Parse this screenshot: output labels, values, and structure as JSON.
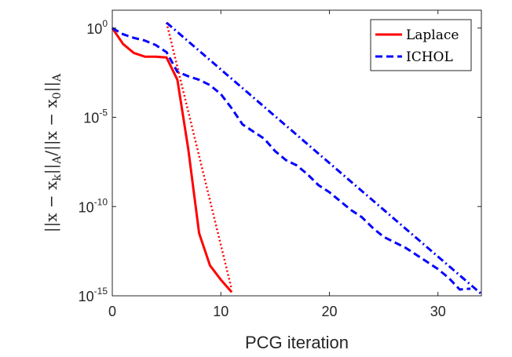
{
  "chart_data": {
    "type": "line",
    "title": "",
    "xlabel": "PCG iteration",
    "ylabel": "||x − x_k||_A / ||x − x_0||_A",
    "xlim": [
      0,
      34
    ],
    "ylim_log10": [
      -15,
      1
    ],
    "yscale": "log",
    "xticks": [
      0,
      10,
      20,
      30
    ],
    "xtick_labels": [
      "0",
      "10",
      "20",
      "30"
    ],
    "yticks": [
      {
        "base": "10",
        "exp": "0",
        "value": 0
      },
      {
        "base": "10",
        "exp": "-5",
        "value": -5
      },
      {
        "base": "10",
        "exp": "-10",
        "value": -10
      },
      {
        "base": "10",
        "exp": "-15",
        "value": -15
      }
    ],
    "legend": {
      "position": "top-right",
      "entries": [
        "Laplace",
        "ICHOL"
      ]
    },
    "ylabel_parts": {
      "a": "||x − x",
      "a_sub": "k",
      "b": "||",
      "b_sub": "A",
      "c": "/||x − x",
      "c_sub": "0",
      "d": "||",
      "d_sub": "A"
    },
    "series": [
      {
        "name": "Laplace",
        "color": "#ff0000",
        "style": "solid",
        "x": [
          0,
          1,
          2,
          3,
          4,
          5,
          6,
          7,
          8,
          9,
          10,
          11
        ],
        "log10_y": [
          0,
          -0.9,
          -1.4,
          -1.6,
          -1.6,
          -1.65,
          -2.9,
          -6.8,
          -11.5,
          -13.3,
          -14.1,
          -14.8
        ]
      },
      {
        "name": "ICHOL",
        "color": "#0000ff",
        "style": "dashed",
        "x": [
          0,
          1,
          2,
          3,
          4,
          5,
          6,
          7,
          8,
          9,
          10,
          11,
          12,
          13,
          14,
          15,
          16,
          17,
          18,
          19,
          20,
          21,
          22,
          23,
          24,
          25,
          26,
          27,
          28,
          29,
          30,
          31,
          32,
          33
        ],
        "log10_y": [
          0,
          -0.35,
          -0.55,
          -0.7,
          -0.95,
          -1.35,
          -2.45,
          -2.7,
          -2.9,
          -3.2,
          -3.7,
          -4.5,
          -5.4,
          -5.8,
          -6.2,
          -6.9,
          -7.4,
          -7.7,
          -8.2,
          -8.8,
          -9.2,
          -9.7,
          -10.2,
          -10.6,
          -11.2,
          -11.7,
          -12.0,
          -12.3,
          -12.7,
          -13.1,
          -13.5,
          -14.0,
          -14.65,
          -14.6
        ]
      },
      {
        "color": "#ff0000",
        "style": "dotted",
        "x": [
          5,
          11
        ],
        "log10_y": [
          0.3,
          -14.65
        ]
      },
      {
        "color": "#0000ff",
        "style": "dashdot",
        "x": [
          5,
          34
        ],
        "log10_y": [
          0.3,
          -14.9
        ]
      }
    ]
  }
}
